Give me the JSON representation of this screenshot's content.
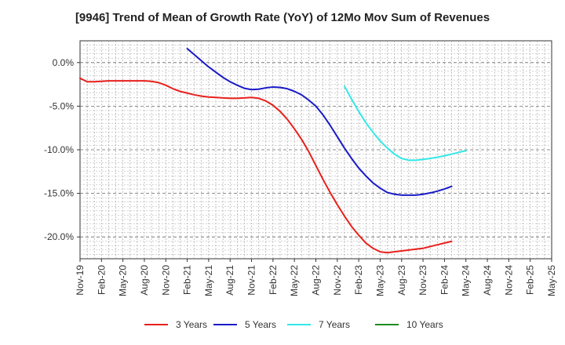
{
  "chart_data": {
    "type": "line",
    "title": "[9946]  Trend of Mean of Growth Rate (YoY) of 12Mo Mov Sum of Revenues",
    "xlabel": "",
    "ylabel": "",
    "x_start": "Nov-19",
    "x_end": "May-25",
    "x_tick_labels": [
      "Nov-19",
      "Feb-20",
      "May-20",
      "Aug-20",
      "Nov-20",
      "Feb-21",
      "May-21",
      "Aug-21",
      "Nov-21",
      "Feb-22",
      "May-22",
      "Aug-22",
      "Nov-22",
      "Feb-23",
      "May-23",
      "Aug-23",
      "Nov-23",
      "Feb-24",
      "May-24",
      "Aug-24",
      "Nov-24",
      "Feb-25",
      "May-25"
    ],
    "ylim": [
      -22.5,
      2.5
    ],
    "y_ticks": [
      0,
      -5,
      -10,
      -15,
      -20
    ],
    "y_tick_labels": [
      "0.0%",
      "-5.0%",
      "-10.0%",
      "-15.0%",
      "-20.0%"
    ],
    "grid": true,
    "legend_position": "bottom",
    "series": [
      {
        "name": "3 Years",
        "color": "#e8201c",
        "start_index": 0,
        "values": [
          -1.8,
          -2.2,
          -2.2,
          -2.15,
          -2.1,
          -2.1,
          -2.1,
          -2.1,
          -2.1,
          -2.1,
          -2.15,
          -2.3,
          -2.6,
          -3.0,
          -3.3,
          -3.5,
          -3.7,
          -3.85,
          -3.95,
          -4.0,
          -4.05,
          -4.1,
          -4.1,
          -4.05,
          -4.0,
          -4.1,
          -4.4,
          -4.9,
          -5.6,
          -6.5,
          -7.6,
          -8.8,
          -10.2,
          -11.8,
          -13.4,
          -14.9,
          -16.3,
          -17.6,
          -18.8,
          -19.8,
          -20.7,
          -21.3,
          -21.7,
          -21.8,
          -21.7,
          -21.6,
          -21.5,
          -21.4,
          -21.3,
          -21.1,
          -20.9,
          -20.7,
          -20.5
        ]
      },
      {
        "name": "5 Years",
        "color": "#1a1ac8",
        "start_index": 15,
        "values": [
          1.6,
          0.9,
          0.2,
          -0.5,
          -1.1,
          -1.7,
          -2.2,
          -2.6,
          -2.95,
          -3.1,
          -3.05,
          -2.9,
          -2.8,
          -2.85,
          -3.0,
          -3.3,
          -3.7,
          -4.3,
          -5.0,
          -6.0,
          -7.2,
          -8.5,
          -9.8,
          -11.0,
          -12.1,
          -13.0,
          -13.8,
          -14.4,
          -14.9,
          -15.1,
          -15.2,
          -15.2,
          -15.2,
          -15.1,
          -14.95,
          -14.75,
          -14.5,
          -14.2
        ]
      },
      {
        "name": "7 Years",
        "color": "#33e8e8",
        "start_index": 37,
        "values": [
          -2.7,
          -4.2,
          -5.6,
          -6.9,
          -8.0,
          -9.0,
          -9.8,
          -10.5,
          -11.0,
          -11.2,
          -11.2,
          -11.1,
          -11.0,
          -10.85,
          -10.7,
          -10.5,
          -10.3,
          -10.1
        ]
      },
      {
        "name": "10 Years",
        "color": "#1e8c1e",
        "start_index": 0,
        "values": []
      }
    ]
  }
}
